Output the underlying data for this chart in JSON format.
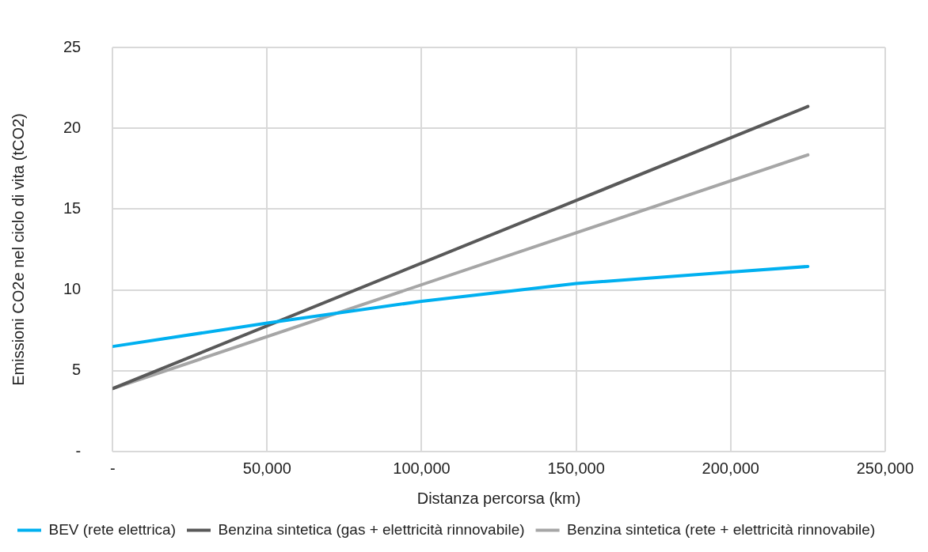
{
  "chart_data": {
    "type": "line",
    "xlabel": "Distanza percorsa (km)",
    "ylabel": "Emissioni CO2e nel ciclo di vita (tCO2)",
    "xlim": [
      0,
      250000
    ],
    "xticks": [
      {
        "value": 0,
        "label": "-"
      },
      {
        "value": 50000,
        "label": "50,000"
      },
      {
        "value": 100000,
        "label": "100,000"
      },
      {
        "value": 150000,
        "label": "150,000"
      },
      {
        "value": 200000,
        "label": "200,000"
      },
      {
        "value": 250000,
        "label": "250,000"
      }
    ],
    "ylim": [
      0,
      25
    ],
    "yticks": [
      {
        "value": 0,
        "label": "-"
      },
      5,
      10,
      15,
      20,
      25
    ],
    "grid": true,
    "legend": "bottom",
    "marker": "none",
    "line_style": "solid",
    "series": [
      {
        "name": "BEV (rete elettrica)",
        "color": "#00b0f0",
        "x": [
          0,
          50000,
          100000,
          150000,
          200000,
          225000
        ],
        "values": [
          6.5,
          7.95,
          9.3,
          10.4,
          11.1,
          11.45
        ]
      },
      {
        "name": "Benzina sintetica (gas + elettricità rinnovabile)",
        "color": "#595959",
        "x": [
          0,
          225000
        ],
        "values": [
          3.9,
          21.35
        ]
      },
      {
        "name": "Benzina sintetica (rete + elettricità rinnovabile)",
        "color": "#a6a6a6",
        "x": [
          0,
          225000
        ],
        "values": [
          3.9,
          18.35
        ]
      }
    ]
  }
}
